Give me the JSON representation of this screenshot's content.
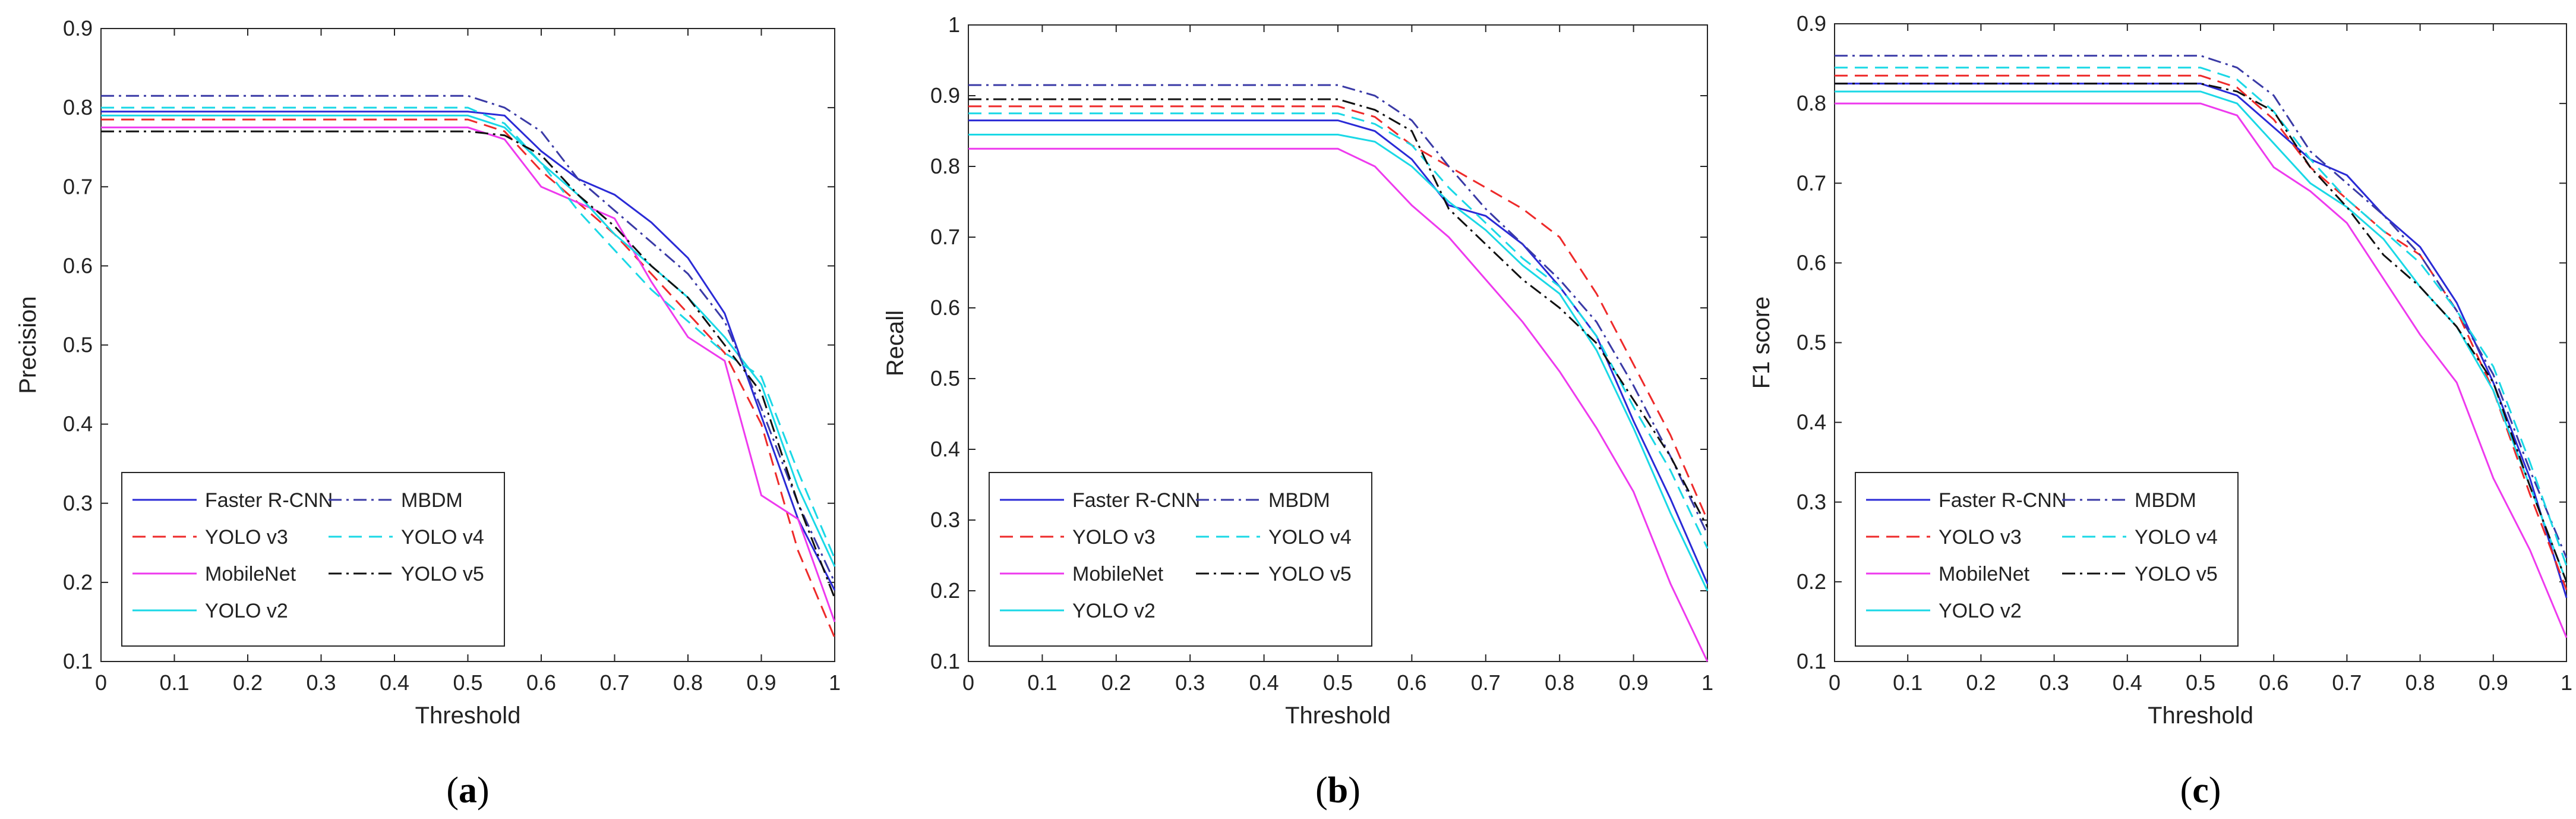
{
  "chart_data": [
    {
      "type": "line",
      "caption": "a",
      "title": "",
      "xlabel": "Threshold",
      "ylabel": "Precision",
      "xlim": [
        0,
        1
      ],
      "ylim": [
        0.1,
        0.9
      ],
      "x_ticks": [
        "0",
        "0.1",
        "0.2",
        "0.3",
        "0.4",
        "0.5",
        "0.6",
        "0.7",
        "0.8",
        "0.9",
        "1"
      ],
      "y_ticks": [
        "0.1",
        "0.2",
        "0.3",
        "0.4",
        "0.5",
        "0.6",
        "0.7",
        "0.8",
        "0.9"
      ],
      "legend_position": "bottom-left",
      "x": [
        0,
        0.5,
        0.55,
        0.6,
        0.65,
        0.7,
        0.75,
        0.8,
        0.85,
        0.9,
        0.95,
        1
      ],
      "series": [
        {
          "name": "Faster R-CNN",
          "color": "#2a2ad6",
          "dash": "solid",
          "values": [
            0.795,
            0.795,
            0.79,
            0.745,
            0.71,
            0.69,
            0.655,
            0.61,
            0.54,
            0.41,
            0.28,
            0.19
          ]
        },
        {
          "name": "YOLO v3",
          "color": "#ee2a2a",
          "dash": "dashed",
          "values": [
            0.785,
            0.785,
            0.77,
            0.72,
            0.68,
            0.64,
            0.59,
            0.54,
            0.49,
            0.4,
            0.24,
            0.13
          ]
        },
        {
          "name": "MobileNet",
          "color": "#ee3aee",
          "dash": "solid",
          "values": [
            0.775,
            0.775,
            0.76,
            0.7,
            0.68,
            0.66,
            0.58,
            0.51,
            0.48,
            0.31,
            0.28,
            0.15
          ]
        },
        {
          "name": "YOLO v2",
          "color": "#1ad8e6",
          "dash": "solid",
          "values": [
            0.79,
            0.79,
            0.775,
            0.73,
            0.69,
            0.64,
            0.6,
            0.56,
            0.51,
            0.45,
            0.32,
            0.22
          ]
        },
        {
          "name": "MBDM",
          "color": "#3a3aa6",
          "dash": "dashdot",
          "values": [
            0.815,
            0.815,
            0.8,
            0.77,
            0.71,
            0.67,
            0.63,
            0.59,
            0.53,
            0.42,
            0.3,
            0.2
          ]
        },
        {
          "name": "YOLO v4",
          "color": "#1ad8e6",
          "dash": "dashed",
          "values": [
            0.8,
            0.8,
            0.78,
            0.73,
            0.67,
            0.62,
            0.57,
            0.53,
            0.49,
            0.46,
            0.34,
            0.23
          ]
        },
        {
          "name": "YOLO v5",
          "color": "#111111",
          "dash": "dashdot",
          "values": [
            0.77,
            0.77,
            0.765,
            0.74,
            0.69,
            0.65,
            0.6,
            0.56,
            0.5,
            0.44,
            0.3,
            0.18
          ]
        }
      ]
    },
    {
      "type": "line",
      "caption": "b",
      "title": "",
      "xlabel": "Threshold",
      "ylabel": "Recall",
      "xlim": [
        0,
        1
      ],
      "ylim": [
        0.1,
        1
      ],
      "x_ticks": [
        "0",
        "0.1",
        "0.2",
        "0.3",
        "0.4",
        "0.5",
        "0.6",
        "0.7",
        "0.8",
        "0.9",
        "1"
      ],
      "y_ticks": [
        "0.1",
        "0.2",
        "0.3",
        "0.4",
        "0.5",
        "0.6",
        "0.7",
        "0.8",
        "0.9",
        "1"
      ],
      "legend_position": "bottom-left",
      "x": [
        0,
        0.5,
        0.55,
        0.6,
        0.65,
        0.7,
        0.75,
        0.8,
        0.85,
        0.9,
        0.95,
        1
      ],
      "series": [
        {
          "name": "Faster R-CNN",
          "color": "#2a2ad6",
          "dash": "solid",
          "values": [
            0.865,
            0.865,
            0.85,
            0.81,
            0.745,
            0.73,
            0.69,
            0.63,
            0.56,
            0.44,
            0.33,
            0.21
          ]
        },
        {
          "name": "YOLO v3",
          "color": "#ee2a2a",
          "dash": "dashed",
          "values": [
            0.885,
            0.885,
            0.87,
            0.83,
            0.8,
            0.77,
            0.74,
            0.7,
            0.62,
            0.52,
            0.42,
            0.3
          ]
        },
        {
          "name": "MobileNet",
          "color": "#ee3aee",
          "dash": "solid",
          "values": [
            0.825,
            0.825,
            0.8,
            0.745,
            0.7,
            0.64,
            0.58,
            0.51,
            0.43,
            0.34,
            0.21,
            0.1
          ]
        },
        {
          "name": "YOLO v2",
          "color": "#1ad8e6",
          "dash": "solid",
          "values": [
            0.845,
            0.845,
            0.835,
            0.8,
            0.75,
            0.71,
            0.66,
            0.62,
            0.54,
            0.43,
            0.31,
            0.2
          ]
        },
        {
          "name": "MBDM",
          "color": "#3a3aa6",
          "dash": "dashdot",
          "values": [
            0.915,
            0.915,
            0.9,
            0.865,
            0.8,
            0.74,
            0.69,
            0.64,
            0.58,
            0.49,
            0.39,
            0.28
          ]
        },
        {
          "name": "YOLO v4",
          "color": "#1ad8e6",
          "dash": "dashed",
          "values": [
            0.875,
            0.875,
            0.86,
            0.83,
            0.77,
            0.72,
            0.67,
            0.63,
            0.56,
            0.46,
            0.37,
            0.26
          ]
        },
        {
          "name": "YOLO v5",
          "color": "#111111",
          "dash": "dashdot",
          "values": [
            0.895,
            0.895,
            0.88,
            0.85,
            0.74,
            0.69,
            0.64,
            0.6,
            0.55,
            0.47,
            0.39,
            0.29
          ]
        }
      ]
    },
    {
      "type": "line",
      "caption": "c",
      "title": "",
      "xlabel": "Threshold",
      "ylabel": "F1 score",
      "xlim": [
        0,
        1
      ],
      "ylim": [
        0.1,
        0.9
      ],
      "x_ticks": [
        "0",
        "0.1",
        "0.2",
        "0.3",
        "0.4",
        "0.5",
        "0.6",
        "0.7",
        "0.8",
        "0.9",
        "1"
      ],
      "y_ticks": [
        "0.1",
        "0.2",
        "0.3",
        "0.4",
        "0.5",
        "0.6",
        "0.7",
        "0.8",
        "0.9"
      ],
      "legend_position": "bottom-left",
      "x": [
        0,
        0.5,
        0.55,
        0.6,
        0.65,
        0.7,
        0.75,
        0.8,
        0.85,
        0.9,
        0.95,
        1
      ],
      "series": [
        {
          "name": "Faster R-CNN",
          "color": "#2a2ad6",
          "dash": "solid",
          "values": [
            0.825,
            0.825,
            0.81,
            0.77,
            0.73,
            0.71,
            0.66,
            0.62,
            0.55,
            0.45,
            0.33,
            0.18
          ]
        },
        {
          "name": "YOLO v3",
          "color": "#ee2a2a",
          "dash": "dashed",
          "values": [
            0.835,
            0.835,
            0.82,
            0.78,
            0.72,
            0.68,
            0.64,
            0.61,
            0.54,
            0.44,
            0.31,
            0.19
          ]
        },
        {
          "name": "MobileNet",
          "color": "#ee3aee",
          "dash": "solid",
          "values": [
            0.8,
            0.8,
            0.785,
            0.72,
            0.69,
            0.65,
            0.58,
            0.51,
            0.45,
            0.33,
            0.24,
            0.13
          ]
        },
        {
          "name": "YOLO v2",
          "color": "#1ad8e6",
          "dash": "solid",
          "values": [
            0.815,
            0.815,
            0.8,
            0.75,
            0.7,
            0.67,
            0.63,
            0.57,
            0.52,
            0.44,
            0.32,
            0.2
          ]
        },
        {
          "name": "MBDM",
          "color": "#3a3aa6",
          "dash": "dashdot",
          "values": [
            0.86,
            0.86,
            0.845,
            0.81,
            0.74,
            0.7,
            0.66,
            0.61,
            0.54,
            0.46,
            0.34,
            0.23
          ]
        },
        {
          "name": "YOLO v4",
          "color": "#1ad8e6",
          "dash": "dashed",
          "values": [
            0.845,
            0.845,
            0.83,
            0.79,
            0.73,
            0.68,
            0.64,
            0.6,
            0.54,
            0.47,
            0.35,
            0.22
          ]
        },
        {
          "name": "YOLO v5",
          "color": "#111111",
          "dash": "dashdot",
          "values": [
            0.825,
            0.825,
            0.815,
            0.79,
            0.72,
            0.67,
            0.61,
            0.57,
            0.52,
            0.45,
            0.32,
            0.2
          ]
        }
      ]
    }
  ]
}
